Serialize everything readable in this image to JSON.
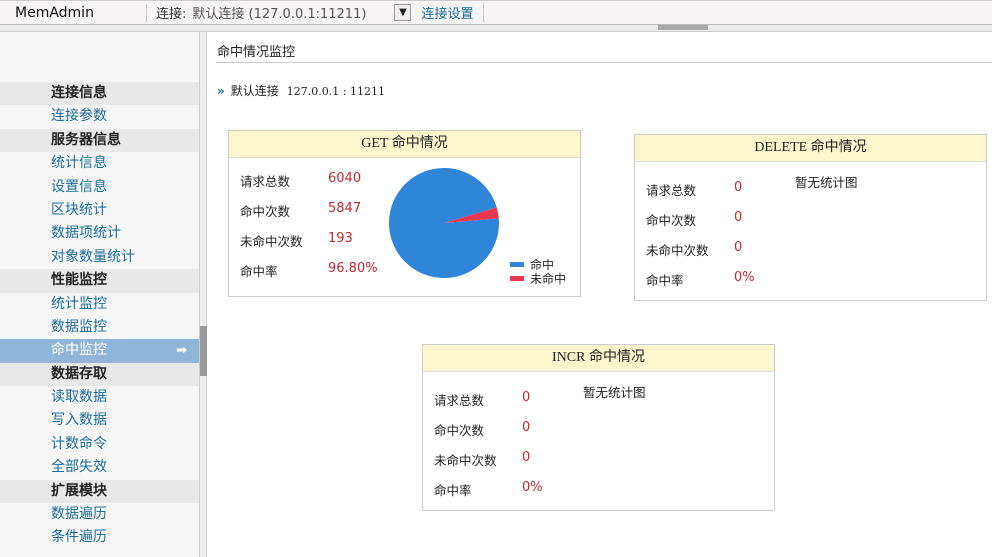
{
  "topbar": {
    "app": "MemAdmin",
    "conn_label": "连接:",
    "conn_value": "默认连接 (127.0.0.1:11211)",
    "dropdown_icon": "▼",
    "settings": "连接设置"
  },
  "sidebar": {
    "items": [
      {
        "label": "连接信息",
        "type": "head"
      },
      {
        "label": "连接参数",
        "type": "link"
      },
      {
        "label": "服务器信息",
        "type": "head"
      },
      {
        "label": "统计信息",
        "type": "link"
      },
      {
        "label": "设置信息",
        "type": "link"
      },
      {
        "label": "区块统计",
        "type": "link"
      },
      {
        "label": "数据项统计",
        "type": "link"
      },
      {
        "label": "对象数量统计",
        "type": "link"
      },
      {
        "label": "性能监控",
        "type": "head"
      },
      {
        "label": "统计监控",
        "type": "link"
      },
      {
        "label": "数据监控",
        "type": "link"
      },
      {
        "label": "命中监控",
        "type": "active"
      },
      {
        "label": "数据存取",
        "type": "head"
      },
      {
        "label": "读取数据",
        "type": "link"
      },
      {
        "label": "写入数据",
        "type": "link"
      },
      {
        "label": "计数命令",
        "type": "link"
      },
      {
        "label": "全部失效",
        "type": "link"
      },
      {
        "label": "扩展模块",
        "type": "head"
      },
      {
        "label": "数据遍历",
        "type": "link"
      },
      {
        "label": "条件遍历",
        "type": "link"
      }
    ],
    "active_arrow": "➡"
  },
  "main": {
    "title": "命中情况监控",
    "conn_icon": "»",
    "conn_name": "默认连接",
    "conn_addr": "127.0.0.1 : 11211",
    "labels": [
      "请求总数",
      "命中次数",
      "未命中次数",
      "命中率"
    ],
    "no_chart": "暂无统计图",
    "boxes": [
      {
        "id": "get",
        "title": "GET 命中情况",
        "values": [
          "6040",
          "5847",
          "193",
          "96.80%"
        ]
      },
      {
        "id": "delete",
        "title": "DELETE 命中情况",
        "values": [
          "0",
          "0",
          "0",
          "0%"
        ]
      },
      {
        "id": "incr",
        "title": "INCR 命中情况",
        "values": [
          "0",
          "0",
          "0",
          "0%"
        ]
      }
    ]
  },
  "chart_data": {
    "type": "pie",
    "slices": [
      {
        "label": "命中",
        "value": 5847,
        "color": "#2f86d8"
      },
      {
        "label": "未命中",
        "value": 193,
        "color": "#e8384f"
      }
    ],
    "legend": "bottom-right"
  }
}
